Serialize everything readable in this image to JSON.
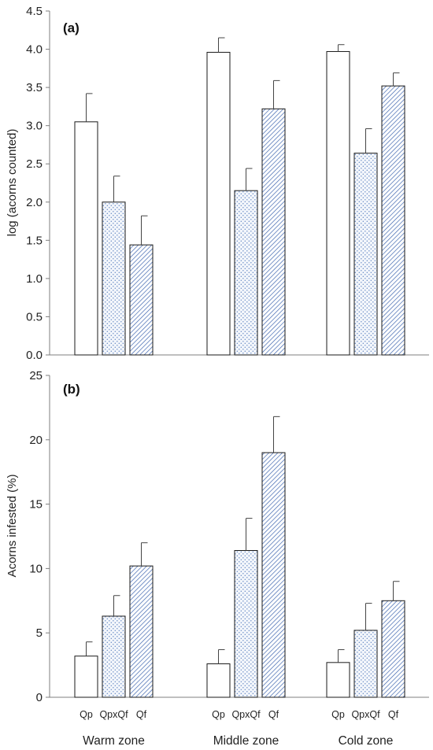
{
  "colors": {
    "axis": "#7f7f7f",
    "bar_edge": "#1a1a1a",
    "dots": "#6b8ec6",
    "hatch": "#3f66b0",
    "dots_bg": "#f3f6fb",
    "hatch_bg": "#ffffff"
  },
  "zones": [
    "Warm zone",
    "Middle zone",
    "Cold zone"
  ],
  "species": [
    "Qp",
    "QpxQf",
    "Qf"
  ],
  "chart_data": [
    {
      "type": "bar",
      "panel_label": "(a)",
      "title": "",
      "xlabel": "",
      "ylabel": "log (acorns counted)",
      "ylim": [
        0,
        4.5
      ],
      "yticks": [
        "0.0",
        "0.5",
        "1.0",
        "1.5",
        "2.0",
        "2.5",
        "3.0",
        "3.5",
        "4.0",
        "4.5"
      ],
      "categories": [
        "Warm zone",
        "Middle zone",
        "Cold zone"
      ],
      "series": [
        {
          "name": "Qp",
          "pattern": "none",
          "values": [
            3.05,
            3.96,
            3.97
          ],
          "errors": [
            0.37,
            0.19,
            0.09
          ]
        },
        {
          "name": "QpxQf",
          "pattern": "dots",
          "values": [
            2.0,
            2.15,
            2.64
          ],
          "errors": [
            0.34,
            0.29,
            0.32
          ]
        },
        {
          "name": "Qf",
          "pattern": "hatch",
          "values": [
            1.44,
            3.22,
            3.52
          ],
          "errors": [
            0.38,
            0.37,
            0.17
          ]
        }
      ],
      "grid": false
    },
    {
      "type": "bar",
      "panel_label": "(b)",
      "title": "",
      "xlabel": "",
      "ylabel": "Acorns infested (%)",
      "ylim": [
        0,
        25
      ],
      "yticks": [
        "0",
        "5",
        "10",
        "15",
        "20",
        "25"
      ],
      "categories": [
        "Warm zone",
        "Middle zone",
        "Cold zone"
      ],
      "series": [
        {
          "name": "Qp",
          "pattern": "none",
          "values": [
            3.2,
            2.6,
            2.7
          ],
          "errors": [
            1.1,
            1.1,
            1.0
          ]
        },
        {
          "name": "QpxQf",
          "pattern": "dots",
          "values": [
            6.3,
            11.4,
            5.2
          ],
          "errors": [
            1.6,
            2.5,
            2.1
          ]
        },
        {
          "name": "Qf",
          "pattern": "hatch",
          "values": [
            10.2,
            19.0,
            7.5
          ],
          "errors": [
            1.8,
            2.8,
            1.5
          ]
        }
      ],
      "grid": false
    }
  ]
}
